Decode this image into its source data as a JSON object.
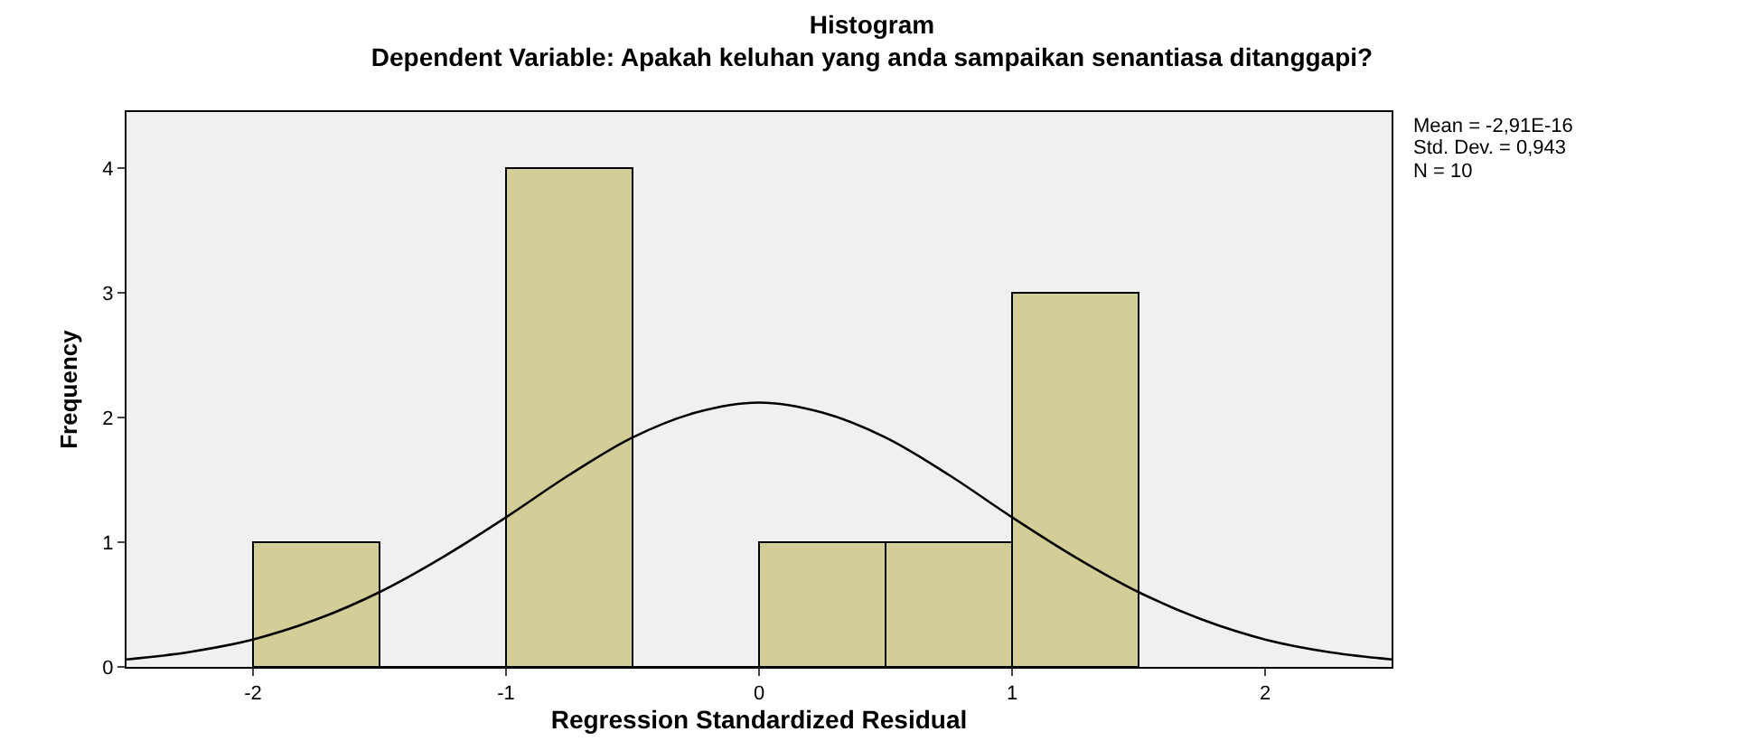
{
  "chart_data": {
    "type": "histogram",
    "title": "Histogram",
    "subtitle": "Dependent Variable: Apakah keluhan yang anda sampaikan senantiasa ditanggapi?",
    "xlabel": "Regression Standardized Residual",
    "ylabel": "Frequency",
    "bins": [
      -2,
      -1.5,
      -1,
      -0.5,
      0,
      0.5,
      1,
      1.5
    ],
    "values": [
      1,
      0,
      4,
      0,
      1,
      1,
      3
    ],
    "color": "#d3ce97",
    "series": [
      {
        "type": "line",
        "color": "#000000",
        "x": [
          -2.5,
          -2.25,
          -2,
          -1.75,
          -1.5,
          -1.25,
          -1,
          -0.75,
          -0.5,
          -0.25,
          0,
          0.25,
          0.5,
          0.75,
          1,
          1.25,
          1.5,
          1.75,
          2,
          2.25,
          2.5
        ],
        "values": [
          0.06,
          0.12,
          0.22,
          0.38,
          0.6,
          0.88,
          1.2,
          1.54,
          1.84,
          2.04,
          2.12,
          2.04,
          1.84,
          1.54,
          1.2,
          0.88,
          0.6,
          0.38,
          0.22,
          0.12,
          0.06
        ]
      }
    ],
    "xlim": [
      -2.5,
      2.5
    ],
    "xticks": [
      -2,
      -1,
      0,
      1,
      2
    ],
    "ylim": [
      0,
      4.45
    ],
    "yticks": [
      0,
      1,
      2,
      3,
      4
    ],
    "grid": false,
    "legend": false,
    "annotations": [
      "Mean = -2,91E-16",
      "Std. Dev. = 0,943",
      "N = 10"
    ]
  }
}
